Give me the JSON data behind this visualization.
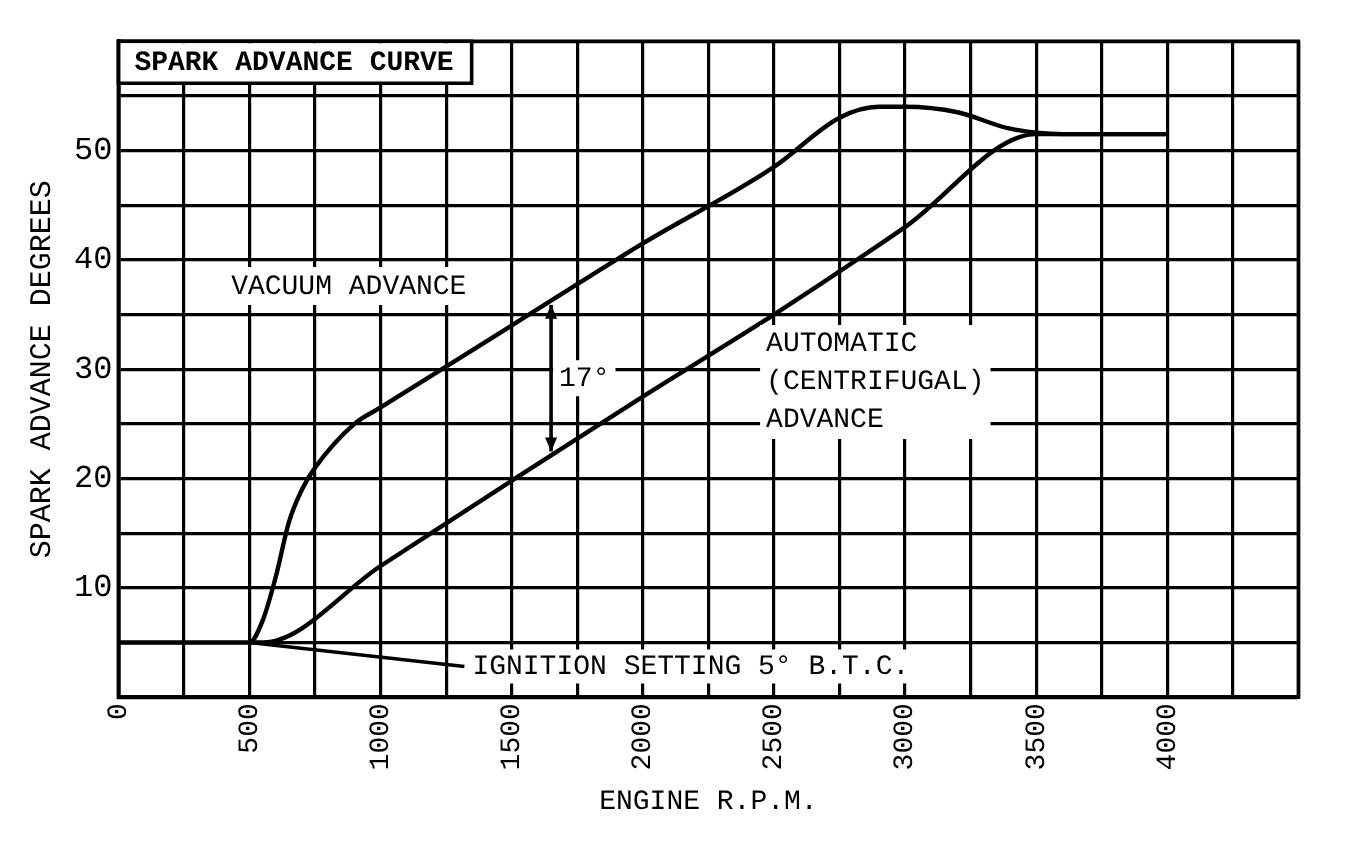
{
  "chart_data": {
    "type": "line",
    "title": "SPARK ADVANCE CURVE",
    "xlabel": "ENGINE R.P.M.",
    "ylabel": "SPARK ADVANCE DEGREES",
    "xlim": [
      0,
      4500
    ],
    "ylim": [
      0,
      60
    ],
    "xticks": [
      0,
      {
        "value": 250,
        "label": null
      },
      500,
      {
        "value": 750,
        "label": null
      },
      1000,
      {
        "value": 1250,
        "label": null
      },
      1500,
      {
        "value": 1750,
        "label": null
      },
      2000,
      {
        "value": 2250,
        "label": null
      },
      2500,
      {
        "value": 2750,
        "label": null
      },
      3000,
      {
        "value": 3250,
        "label": null
      },
      3500,
      {
        "value": 3750,
        "label": null
      },
      4000,
      {
        "value": 4250,
        "label": null
      },
      {
        "value": 4500,
        "label": null
      }
    ],
    "yticks": [
      {
        "value": 0,
        "label": null
      },
      {
        "value": 5,
        "label": null
      },
      10,
      {
        "value": 15,
        "label": null
      },
      20,
      {
        "value": 25,
        "label": null
      },
      30,
      {
        "value": 35,
        "label": null
      },
      40,
      {
        "value": 45,
        "label": null
      },
      50,
      {
        "value": 55,
        "label": null
      },
      {
        "value": 60,
        "label": null
      }
    ],
    "grid": true,
    "legend": false,
    "marker": "none",
    "line_style": "solid",
    "series": [
      {
        "name": "VACUUM ADVANCE",
        "color": "#000000",
        "x": [
          0,
          500,
          550,
          600,
          650,
          700,
          750,
          900,
          1000,
          1500,
          2000,
          2500,
          2750,
          2900,
          3000,
          3200,
          3400,
          3600,
          4000
        ],
        "values": [
          5,
          5,
          7,
          11,
          16,
          19,
          21,
          25,
          26.5,
          34,
          41.5,
          48.5,
          53,
          54,
          54,
          53.5,
          52,
          51.5,
          51.5
        ]
      },
      {
        "name": "AUTOMATIC (CENTRIFUGAL) ADVANCE",
        "color": "#000000",
        "x": [
          500,
          550,
          1000,
          1500,
          2000,
          2500,
          3000,
          3500,
          4000
        ],
        "values": [
          5,
          5,
          12,
          19.8,
          27.5,
          35,
          43,
          51.5,
          51.5
        ]
      }
    ],
    "annotations": [
      "17°",
      {
        "text": "IGNITION SETTING 5° B.T.C.",
        "x": 500,
        "y": 5
      }
    ]
  }
}
